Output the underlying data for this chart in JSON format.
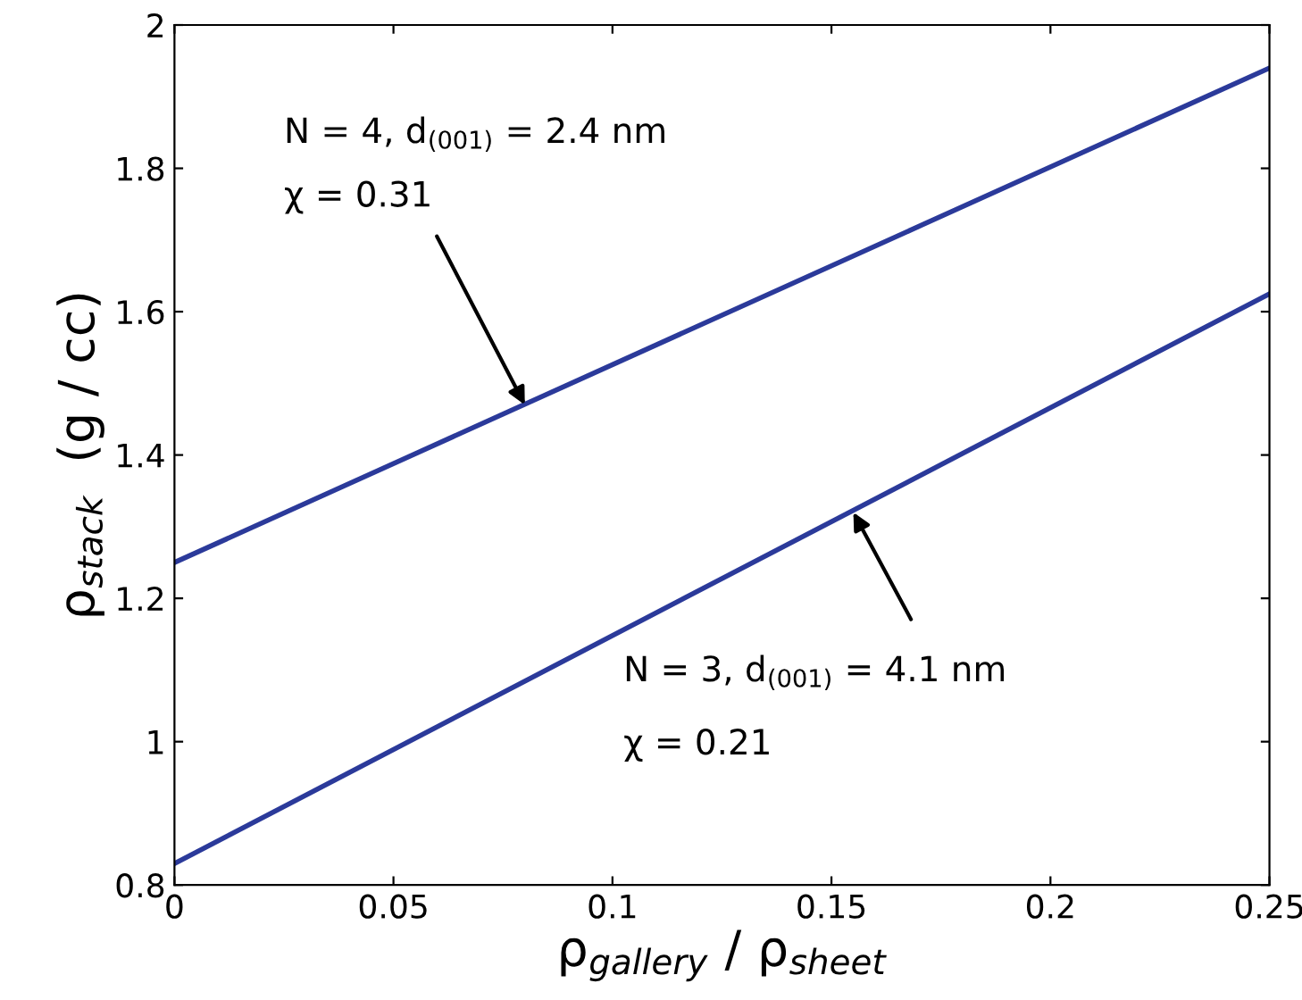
{
  "chart_data": {
    "type": "line",
    "xlabel": "ρ$_{gallery}$ / ρ$_{sheet}$",
    "ylabel": "ρ$_{stack}$  (g / cc)",
    "x": [
      0,
      0.25
    ],
    "series": [
      {
        "color": "#2b3a9a",
        "values": [
          1.25,
          1.94
        ]
      },
      {
        "color": "#2b3a9a",
        "values": [
          0.83,
          1.625
        ]
      }
    ],
    "annotations": [
      "N = 4, d$_{(001)}$ = 2.4 nm",
      {
        "text": "χ = 0.31",
        "x": 0.08,
        "y": 1.47
      },
      {
        "text": "N = 3, d$_{(001)}$ = 4.1 nm",
        "x": 0.155,
        "y": 1.32
      },
      "χ = 0.21"
    ],
    "xlim": [
      0,
      0.25
    ],
    "ylim": [
      0.8,
      2
    ],
    "xticks": [
      0,
      0.05,
      0.1,
      0.15,
      0.2,
      0.25
    ],
    "yticks": [
      0.8,
      1,
      1.2,
      1.4,
      1.6,
      1.8,
      2
    ],
    "grid": false,
    "legend": false,
    "marker": "none",
    "line_style": "solid"
  }
}
